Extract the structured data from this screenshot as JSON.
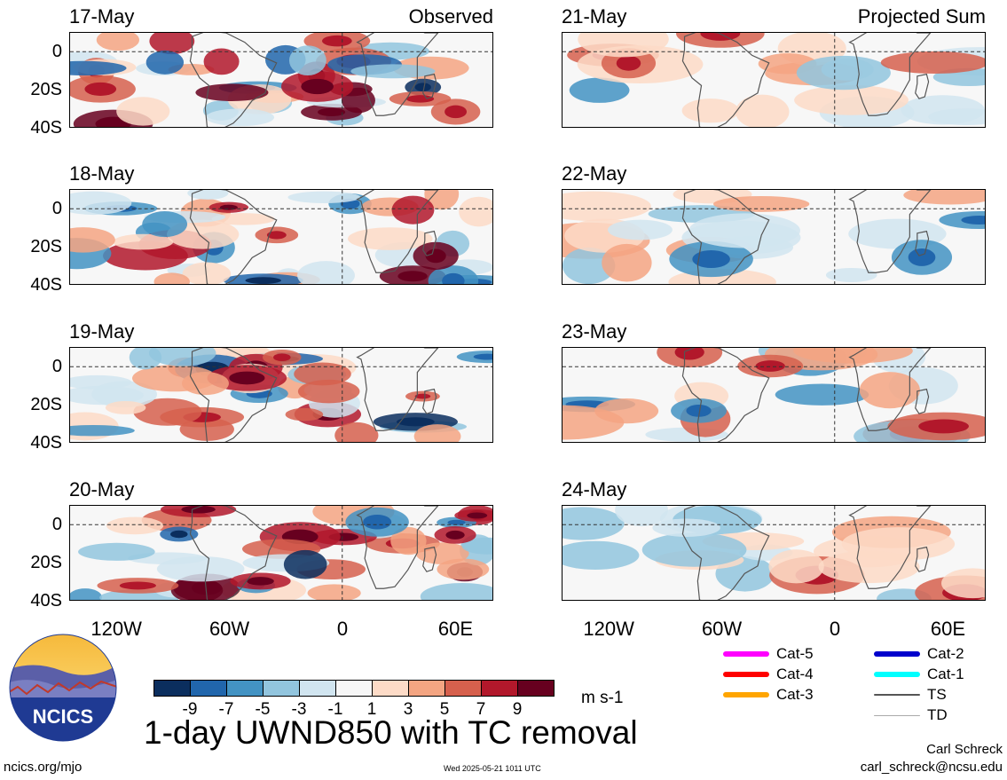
{
  "panels_left": [
    {
      "date": "17-May",
      "corner": "Observed"
    },
    {
      "date": "18-May",
      "corner": ""
    },
    {
      "date": "19-May",
      "corner": ""
    },
    {
      "date": "20-May",
      "corner": ""
    }
  ],
  "panels_right": [
    {
      "date": "21-May",
      "corner": "Projected Sum"
    },
    {
      "date": "22-May",
      "corner": ""
    },
    {
      "date": "23-May",
      "corner": ""
    },
    {
      "date": "24-May",
      "corner": ""
    }
  ],
  "y_ticks": [
    "0",
    "20S",
    "40S"
  ],
  "x_ticks": [
    "120W",
    "60W",
    "0",
    "60E"
  ],
  "colorbar": {
    "colors": [
      "#0b2e5e",
      "#2166ac",
      "#4393c3",
      "#92c5de",
      "#d1e5f0",
      "#f7f7f7",
      "#fddbc7",
      "#f4a582",
      "#d6604d",
      "#b2182b",
      "#67001f"
    ],
    "labels": [
      "-9",
      "-7",
      "-5",
      "-3",
      "-1",
      "1",
      "3",
      "5",
      "7",
      "9"
    ],
    "units": "m s-1"
  },
  "title": "1-day UWND850 with TC removal",
  "legend": [
    {
      "label": "Cat-5",
      "color": "#ff00ff"
    },
    {
      "label": "Cat-4",
      "color": "#ff0000"
    },
    {
      "label": "Cat-3",
      "color": "#ffa500"
    },
    {
      "label": "Cat-2",
      "color": "#0000cc"
    },
    {
      "label": "Cat-1",
      "color": "#00ffff"
    },
    {
      "label": "TS",
      "color": "#555555"
    },
    {
      "label": "TD",
      "color": "#aaaaaa"
    }
  ],
  "logo_text": "NCICS",
  "footer": {
    "left": "ncics.org/mjo",
    "center": "Wed 2025-05-21 1011 UTC",
    "author": "Carl Schreck",
    "email": "carl_schreck@ncsu.edu"
  },
  "chart_data": {
    "type": "heatmap",
    "variable": "1-day UWND850 with TC removal",
    "units": "m s-1",
    "x_axis": {
      "ticks": [
        "120W",
        "60W",
        "0",
        "60E"
      ],
      "range": [
        -145,
        80
      ]
    },
    "y_axis": {
      "ticks": [
        "0",
        "20S",
        "40S"
      ],
      "range": [
        -40,
        10
      ]
    },
    "contour_levels": [
      -9,
      -7,
      -5,
      -3,
      -1,
      1,
      3,
      5,
      7,
      9
    ],
    "panels": [
      {
        "date": "17-May",
        "type": "Observed"
      },
      {
        "date": "18-May",
        "type": "Observed"
      },
      {
        "date": "19-May",
        "type": "Observed"
      },
      {
        "date": "20-May",
        "type": "Observed"
      },
      {
        "date": "21-May",
        "type": "Projected Sum"
      },
      {
        "date": "22-May",
        "type": "Projected Sum"
      },
      {
        "date": "23-May",
        "type": "Projected Sum"
      },
      {
        "date": "24-May",
        "type": "Projected Sum"
      }
    ]
  }
}
